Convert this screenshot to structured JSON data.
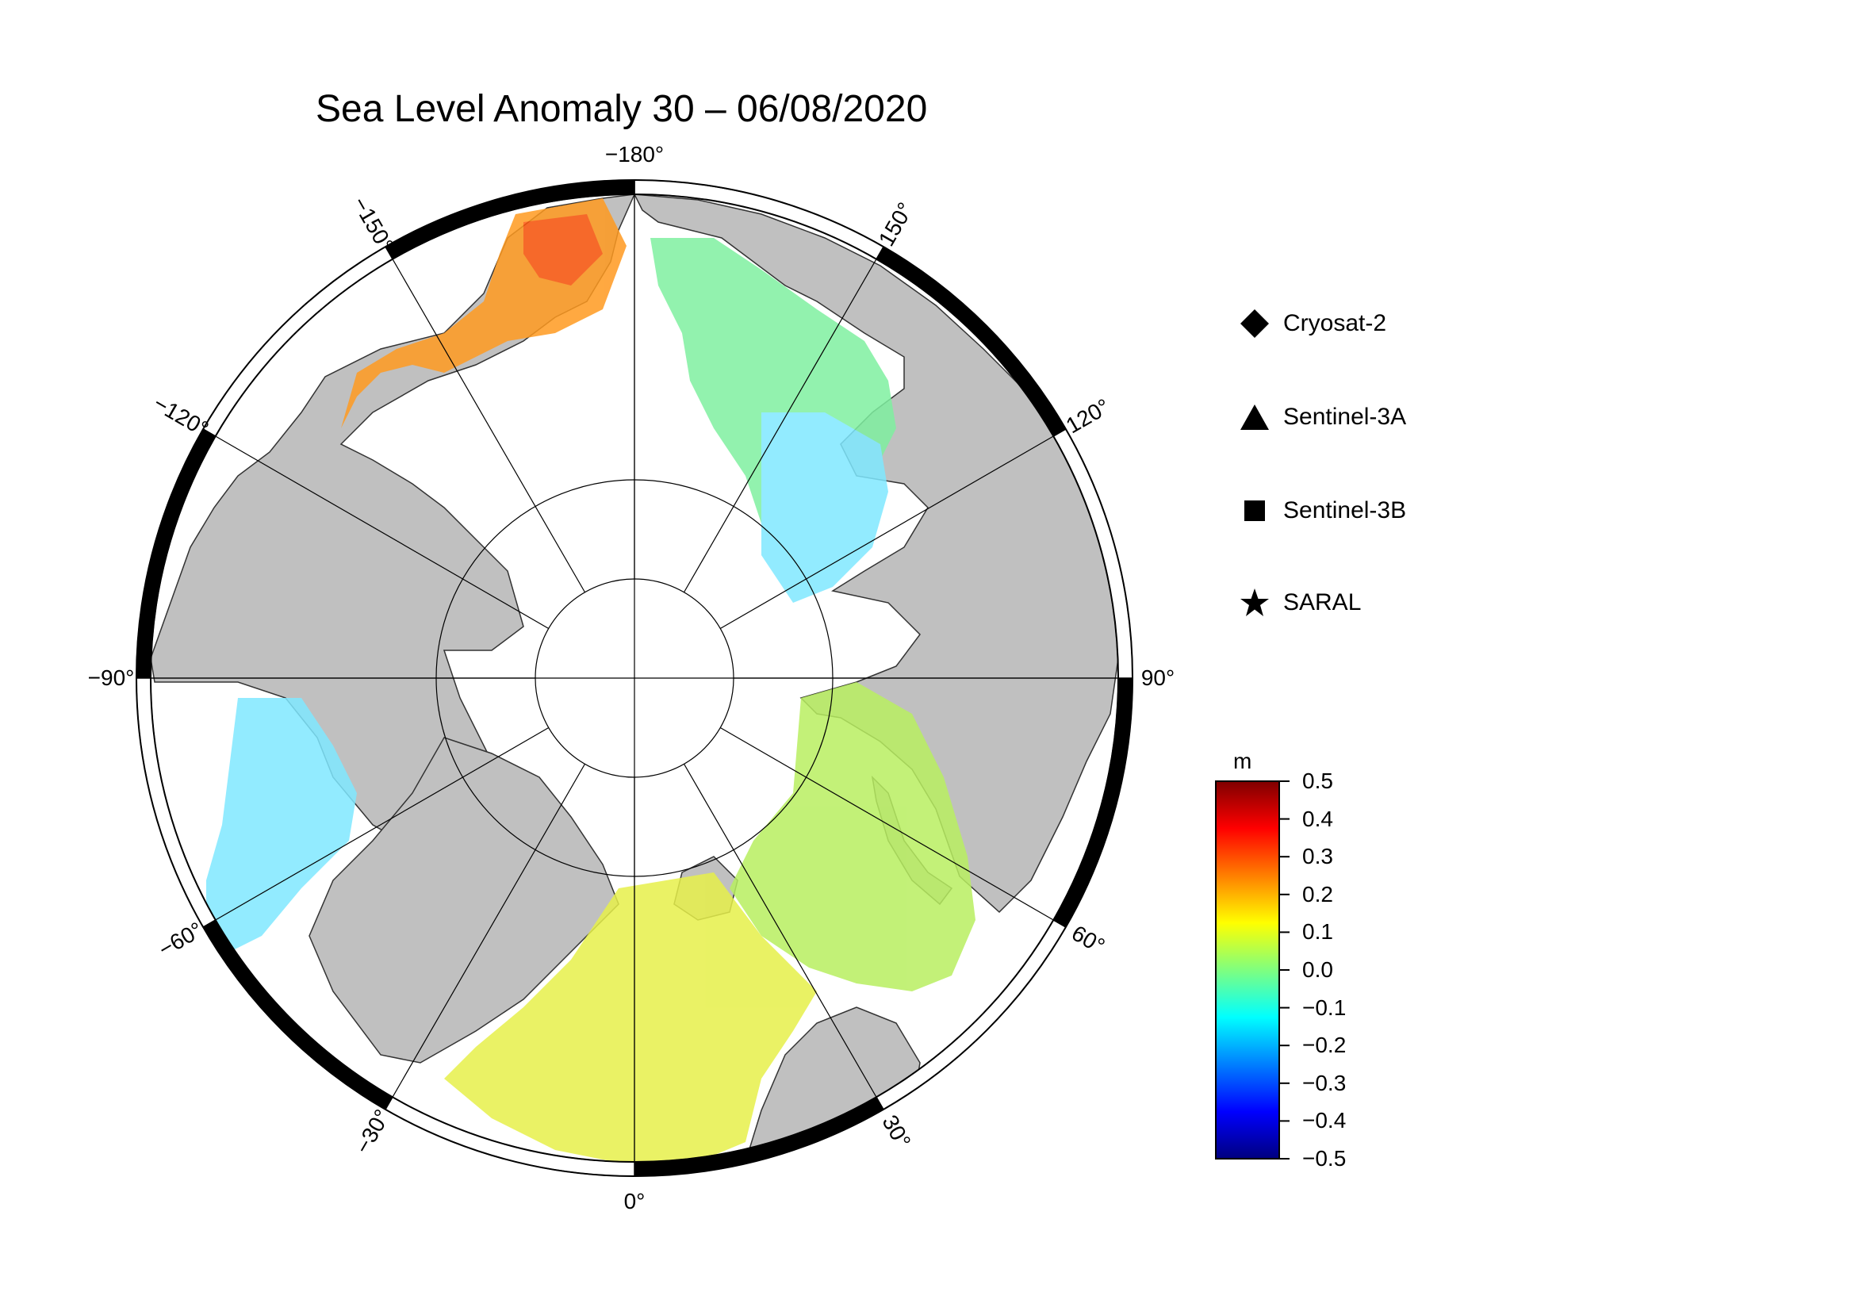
{
  "title": "Sea Level Anomaly 30 – 06/08/2020",
  "projection": {
    "type": "north-polar-stereographic",
    "lon_labels": [
      {
        "lon": 180,
        "text": "−180°"
      },
      {
        "lon": -150,
        "text": "−150°"
      },
      {
        "lon": -120,
        "text": "−120°"
      },
      {
        "lon": -90,
        "text": "−90°"
      },
      {
        "lon": -60,
        "text": "−60°"
      },
      {
        "lon": -30,
        "text": "−30°"
      },
      {
        "lon": 0,
        "text": "0°"
      },
      {
        "lon": 30,
        "text": "30°"
      },
      {
        "lon": 60,
        "text": "60°"
      },
      {
        "lon": 90,
        "text": "90°"
      },
      {
        "lon": 120,
        "text": "120°"
      },
      {
        "lon": 150,
        "text": "150°"
      }
    ]
  },
  "legend": {
    "items": [
      {
        "symbol": "diamond",
        "label": "Cryosat-2"
      },
      {
        "symbol": "triangle",
        "label": "Sentinel-3A"
      },
      {
        "symbol": "square",
        "label": "Sentinel-3B"
      },
      {
        "symbol": "star",
        "label": "SARAL"
      }
    ]
  },
  "colorbar": {
    "unit": "m",
    "min": -0.5,
    "max": 0.5,
    "tick_labels": [
      "0.5",
      "0.4",
      "0.3",
      "0.2",
      "0.1",
      "0.0",
      "−0.1",
      "−0.2",
      "−0.3",
      "−0.4",
      "−0.5"
    ],
    "colormap": [
      "#00007f",
      "#0000ff",
      "#007fff",
      "#00ffff",
      "#7fff7f",
      "#ffff00",
      "#ff7f00",
      "#ff0000",
      "#7f0000"
    ]
  },
  "colors": {
    "land": "#c0c0c0",
    "ice": "#ffffff",
    "frame_dark": "#000000"
  }
}
